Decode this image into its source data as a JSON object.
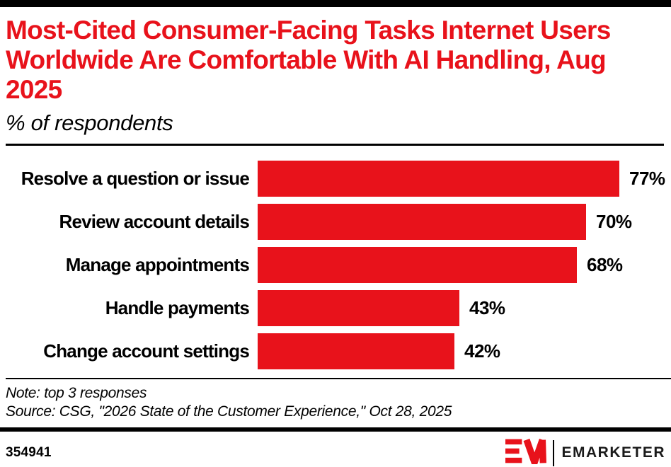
{
  "header": {
    "title": "Most-Cited Consumer-Facing Tasks Internet Users Worldwide Are Comfortable With AI Handling, Aug 2025",
    "subtitle": "% of respondents"
  },
  "chart_data": {
    "type": "bar",
    "orientation": "horizontal",
    "title": "Most-Cited Consumer-Facing Tasks Internet Users Worldwide Are Comfortable With AI Handling, Aug 2025",
    "subtitle": "% of respondents",
    "categories": [
      "Resolve a question or issue",
      "Review account details",
      "Manage appointments",
      "Handle payments",
      "Change account settings"
    ],
    "values": [
      77,
      70,
      68,
      43,
      42
    ],
    "value_labels": [
      "77%",
      "70%",
      "68%",
      "43%",
      "42%"
    ],
    "unit": "%",
    "xlabel": "",
    "ylabel": "",
    "xlim": [
      0,
      100
    ],
    "grid": false,
    "legend": false,
    "bar_color": "#e8121b",
    "label_position": "right-of-bar"
  },
  "footer": {
    "note": "Note: top 3 responses",
    "source": "Source: CSG, \"2026 State of the Customer Experience,\" Oct 28, 2025",
    "chart_id": "354941",
    "brand": "EMARKETER"
  },
  "colors": {
    "accent_red": "#e8121b",
    "bar_black": "#000000",
    "background": "#ffffff"
  }
}
